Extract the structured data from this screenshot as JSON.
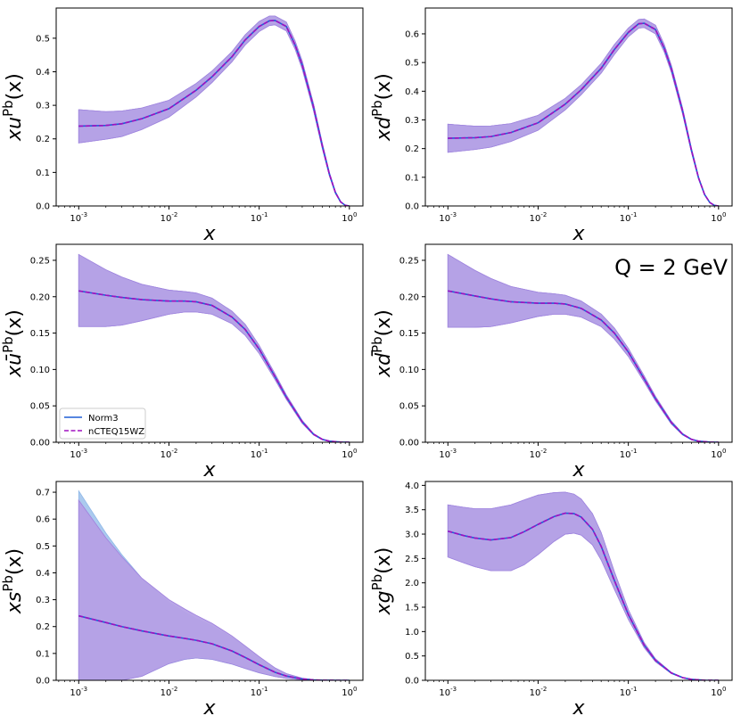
{
  "chart_data": {
    "annotation": "Q = 2 GeV",
    "legend": [
      "Norm3",
      "nCTEQ15WZ"
    ],
    "colors": {
      "norm3": "#1f5fd6",
      "nctEQ": "#a010c0",
      "band_norm3": "#8fb8e8",
      "band_nctEQ": "#d78be6",
      "band_overlap": "#b4a2e6"
    },
    "x_tick_labels": [
      "10^-3",
      "10^-2",
      "10^-1",
      "10^0"
    ],
    "x_range_log10": [
      -3.25,
      0.15
    ],
    "panels": [
      {
        "id": "u",
        "type": "area",
        "xlabel": "x",
        "ylabel_base": "xu",
        "ylabel_sup": "Pb",
        "ylabel_tail": "(x)",
        "ylim": [
          0,
          0.59
        ],
        "yticks": [
          0.0,
          0.1,
          0.2,
          0.3,
          0.4,
          0.5
        ],
        "yticklabels": [
          "0.0",
          "0.1",
          "0.2",
          "0.3",
          "0.4",
          "0.5"
        ],
        "x": [
          0.001,
          0.002,
          0.003,
          0.005,
          0.01,
          0.02,
          0.03,
          0.05,
          0.07,
          0.1,
          0.13,
          0.15,
          0.2,
          0.25,
          0.3,
          0.4,
          0.5,
          0.6,
          0.7,
          0.8,
          0.9,
          1.0
        ],
        "central": [
          0.238,
          0.24,
          0.245,
          0.26,
          0.29,
          0.345,
          0.385,
          0.445,
          0.495,
          0.535,
          0.552,
          0.553,
          0.535,
          0.48,
          0.42,
          0.295,
          0.18,
          0.095,
          0.04,
          0.012,
          0.002,
          0.0
        ],
        "upper": [
          0.287,
          0.281,
          0.283,
          0.292,
          0.315,
          0.365,
          0.402,
          0.46,
          0.51,
          0.55,
          0.566,
          0.566,
          0.548,
          0.492,
          0.432,
          0.305,
          0.188,
          0.1,
          0.043,
          0.013,
          0.002,
          0.0
        ],
        "lower": [
          0.188,
          0.199,
          0.207,
          0.228,
          0.265,
          0.325,
          0.368,
          0.43,
          0.48,
          0.52,
          0.538,
          0.54,
          0.522,
          0.468,
          0.408,
          0.285,
          0.172,
          0.09,
          0.037,
          0.011,
          0.002,
          0.0
        ]
      },
      {
        "id": "d",
        "type": "area",
        "xlabel": "x",
        "ylabel_base": "xd",
        "ylabel_sup": "Pb",
        "ylabel_tail": "(x)",
        "ylim": [
          0,
          0.69
        ],
        "yticks": [
          0.0,
          0.1,
          0.2,
          0.3,
          0.4,
          0.5,
          0.6
        ],
        "yticklabels": [
          "0.0",
          "0.1",
          "0.2",
          "0.3",
          "0.4",
          "0.5",
          "0.6"
        ],
        "x": [
          0.001,
          0.002,
          0.003,
          0.005,
          0.01,
          0.02,
          0.03,
          0.05,
          0.07,
          0.1,
          0.13,
          0.15,
          0.2,
          0.25,
          0.3,
          0.4,
          0.5,
          0.6,
          0.7,
          0.8,
          0.9,
          1.0
        ],
        "central": [
          0.236,
          0.238,
          0.242,
          0.256,
          0.29,
          0.355,
          0.405,
          0.48,
          0.545,
          0.605,
          0.635,
          0.637,
          0.615,
          0.55,
          0.478,
          0.33,
          0.195,
          0.098,
          0.04,
          0.012,
          0.002,
          0.0
        ],
        "upper": [
          0.285,
          0.278,
          0.279,
          0.287,
          0.316,
          0.375,
          0.422,
          0.497,
          0.562,
          0.62,
          0.65,
          0.652,
          0.63,
          0.563,
          0.49,
          0.34,
          0.202,
          0.102,
          0.042,
          0.013,
          0.002,
          0.0
        ],
        "lower": [
          0.187,
          0.197,
          0.205,
          0.225,
          0.264,
          0.335,
          0.388,
          0.463,
          0.528,
          0.59,
          0.62,
          0.622,
          0.6,
          0.537,
          0.466,
          0.32,
          0.188,
          0.094,
          0.038,
          0.011,
          0.002,
          0.0
        ]
      },
      {
        "id": "ubar",
        "type": "area",
        "xlabel": "x",
        "ylabel_base": "xū",
        "ylabel_sup": "Pb",
        "ylabel_tail": "(x)",
        "ylim": [
          0,
          0.272
        ],
        "yticks": [
          0.0,
          0.05,
          0.1,
          0.15,
          0.2,
          0.25
        ],
        "yticklabels": [
          "0.00",
          "0.05",
          "0.10",
          "0.15",
          "0.20",
          "0.25"
        ],
        "x": [
          0.001,
          0.002,
          0.003,
          0.005,
          0.01,
          0.015,
          0.02,
          0.03,
          0.05,
          0.07,
          0.1,
          0.15,
          0.2,
          0.3,
          0.4,
          0.5,
          0.6,
          0.8,
          1.0
        ],
        "central": [
          0.208,
          0.202,
          0.199,
          0.196,
          0.194,
          0.194,
          0.193,
          0.188,
          0.172,
          0.155,
          0.128,
          0.09,
          0.062,
          0.028,
          0.011,
          0.004,
          0.0015,
          0.0002,
          0.0
        ],
        "upper": [
          0.258,
          0.237,
          0.227,
          0.217,
          0.209,
          0.207,
          0.205,
          0.198,
          0.18,
          0.162,
          0.133,
          0.094,
          0.065,
          0.03,
          0.012,
          0.0045,
          0.0017,
          0.0002,
          0.0
        ],
        "lower": [
          0.159,
          0.159,
          0.161,
          0.167,
          0.176,
          0.179,
          0.179,
          0.176,
          0.163,
          0.147,
          0.122,
          0.086,
          0.059,
          0.026,
          0.01,
          0.0035,
          0.0013,
          0.0002,
          0.0
        ]
      },
      {
        "id": "dbar",
        "type": "area",
        "xlabel": "x",
        "ylabel_base": "xd̄",
        "ylabel_sup": "Pb",
        "ylabel_tail": "(x)",
        "ylim": [
          0,
          0.272
        ],
        "yticks": [
          0.0,
          0.05,
          0.1,
          0.15,
          0.2,
          0.25
        ],
        "yticklabels": [
          "0.00",
          "0.05",
          "0.10",
          "0.15",
          "0.20",
          "0.25"
        ],
        "x": [
          0.001,
          0.002,
          0.003,
          0.005,
          0.01,
          0.015,
          0.02,
          0.03,
          0.05,
          0.07,
          0.1,
          0.15,
          0.2,
          0.3,
          0.4,
          0.5,
          0.6,
          0.8,
          1.0
        ],
        "central": [
          0.208,
          0.201,
          0.197,
          0.193,
          0.191,
          0.191,
          0.19,
          0.184,
          0.168,
          0.15,
          0.124,
          0.087,
          0.06,
          0.027,
          0.011,
          0.004,
          0.0015,
          0.0002,
          0.0
        ],
        "upper": [
          0.258,
          0.236,
          0.225,
          0.214,
          0.206,
          0.204,
          0.202,
          0.194,
          0.176,
          0.157,
          0.129,
          0.091,
          0.063,
          0.029,
          0.012,
          0.0045,
          0.0017,
          0.0002,
          0.0
        ],
        "lower": [
          0.158,
          0.158,
          0.159,
          0.164,
          0.173,
          0.176,
          0.176,
          0.172,
          0.159,
          0.142,
          0.118,
          0.083,
          0.057,
          0.025,
          0.01,
          0.0035,
          0.0013,
          0.0002,
          0.0
        ]
      },
      {
        "id": "s",
        "type": "area",
        "xlabel": "x",
        "ylabel_base": "xs",
        "ylabel_sup": "Pb",
        "ylabel_tail": "(x)",
        "ylim": [
          0,
          0.74
        ],
        "yticks": [
          0.0,
          0.1,
          0.2,
          0.3,
          0.4,
          0.5,
          0.6,
          0.7
        ],
        "yticklabels": [
          "0.0",
          "0.1",
          "0.2",
          "0.3",
          "0.4",
          "0.5",
          "0.6",
          "0.7"
        ],
        "x": [
          0.001,
          0.002,
          0.003,
          0.005,
          0.01,
          0.015,
          0.02,
          0.03,
          0.05,
          0.07,
          0.1,
          0.15,
          0.2,
          0.3,
          0.4,
          0.5,
          0.6,
          0.8,
          1.0
        ],
        "central": [
          0.24,
          0.215,
          0.2,
          0.184,
          0.165,
          0.156,
          0.149,
          0.136,
          0.109,
          0.085,
          0.058,
          0.03,
          0.016,
          0.005,
          0.0015,
          0.0004,
          0.0001,
          0.0,
          0.0
        ],
        "upper": [
          0.67,
          0.53,
          0.46,
          0.38,
          0.3,
          0.265,
          0.242,
          0.212,
          0.165,
          0.128,
          0.088,
          0.046,
          0.025,
          0.008,
          0.0025,
          0.0007,
          0.0002,
          0.0,
          0.0
        ],
        "lower": [
          0.0,
          0.0,
          0.0,
          0.015,
          0.062,
          0.078,
          0.083,
          0.078,
          0.06,
          0.044,
          0.028,
          0.014,
          0.007,
          0.002,
          0.0005,
          0.0001,
          0.0,
          0.0,
          0.0
        ],
        "upper_norm3_offset": [
          0.035,
          0.018,
          0.008,
          0.0,
          -0.01,
          -0.012,
          -0.012,
          -0.01,
          -0.006,
          -0.004,
          -0.002,
          0.0,
          0.0,
          0.0,
          0.0,
          0.0,
          0.0,
          0.0,
          0.0
        ],
        "lower_nctEQ_offset": [
          0.0,
          0.0,
          0.0,
          0.0,
          0.004,
          0.006,
          0.007,
          0.006,
          0.004,
          0.003,
          0.002,
          0.0,
          0.0,
          0.0,
          0.0,
          0.0,
          0.0,
          0.0,
          0.0
        ]
      },
      {
        "id": "g",
        "type": "area",
        "xlabel": "x",
        "ylabel_base": "xg",
        "ylabel_sup": "Pb",
        "ylabel_tail": "(x)",
        "ylim": [
          0,
          4.08
        ],
        "yticks": [
          0.0,
          0.5,
          1.0,
          1.5,
          2.0,
          2.5,
          3.0,
          3.5,
          4.0
        ],
        "yticklabels": [
          "0.0",
          "0.5",
          "1.0",
          "1.5",
          "2.0",
          "2.5",
          "3.0",
          "3.5",
          "4.0"
        ],
        "x": [
          0.001,
          0.0015,
          0.002,
          0.003,
          0.005,
          0.007,
          0.01,
          0.015,
          0.02,
          0.025,
          0.03,
          0.04,
          0.05,
          0.07,
          0.1,
          0.15,
          0.2,
          0.3,
          0.4,
          0.5,
          0.7,
          1.0
        ],
        "central": [
          3.06,
          2.97,
          2.92,
          2.88,
          2.93,
          3.05,
          3.2,
          3.36,
          3.43,
          3.42,
          3.35,
          3.1,
          2.75,
          2.05,
          1.35,
          0.72,
          0.41,
          0.15,
          0.055,
          0.02,
          0.002,
          0.0
        ],
        "upper": [
          3.6,
          3.55,
          3.52,
          3.52,
          3.6,
          3.7,
          3.8,
          3.85,
          3.86,
          3.82,
          3.72,
          3.42,
          3.03,
          2.23,
          1.45,
          0.77,
          0.44,
          0.16,
          0.06,
          0.022,
          0.002,
          0.0
        ],
        "lower": [
          2.53,
          2.41,
          2.33,
          2.25,
          2.25,
          2.37,
          2.58,
          2.85,
          3.0,
          3.02,
          2.98,
          2.78,
          2.47,
          1.87,
          1.25,
          0.67,
          0.38,
          0.14,
          0.05,
          0.018,
          0.002,
          0.0
        ]
      }
    ]
  }
}
